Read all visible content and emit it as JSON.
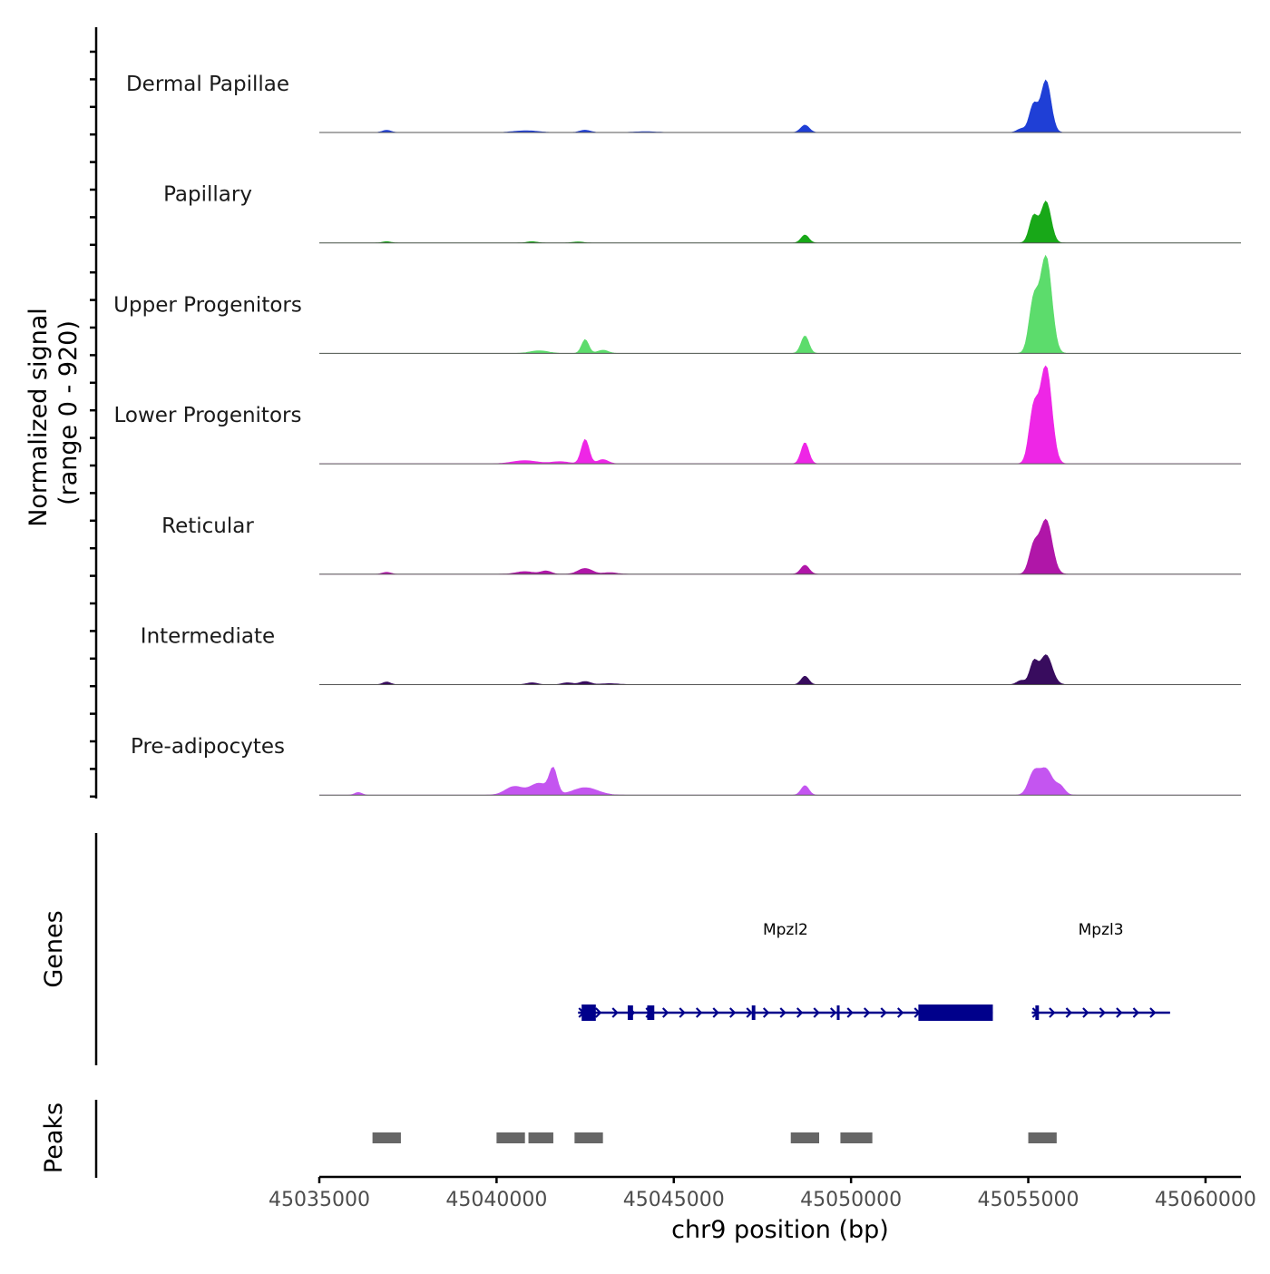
{
  "chart_data": {
    "type": "area",
    "title": "",
    "xlabel": "chr9 position (bp)",
    "ylabel_line1": "Normalized signal",
    "ylabel_line2": "(range 0 - 920)",
    "y_range": [
      0,
      920
    ],
    "xlim": [
      45035000,
      45061000
    ],
    "x_ticks": [
      45035000,
      45040000,
      45045000,
      45050000,
      45055000,
      45060000
    ],
    "x_tick_labels": [
      "45035000",
      "45040000",
      "45045000",
      "45050000",
      "45055000",
      "45060000"
    ],
    "tracks": [
      {
        "name": "Dermal Papillae",
        "color": "#1f3fd6",
        "peaks": [
          {
            "center": 45036900,
            "width": 120,
            "height": 22
          },
          {
            "center": 45040600,
            "width": 250,
            "height": 10
          },
          {
            "center": 45041000,
            "width": 250,
            "height": 12
          },
          {
            "center": 45042500,
            "width": 150,
            "height": 22
          },
          {
            "center": 45044200,
            "width": 300,
            "height": 8
          },
          {
            "center": 45048700,
            "width": 120,
            "height": 70
          },
          {
            "center": 45054800,
            "width": 120,
            "height": 35
          },
          {
            "center": 45055150,
            "width": 120,
            "height": 260
          },
          {
            "center": 45055500,
            "width": 140,
            "height": 490
          }
        ]
      },
      {
        "name": "Papillary",
        "color": "#18a818",
        "peaks": [
          {
            "center": 45036900,
            "width": 120,
            "height": 12
          },
          {
            "center": 45041000,
            "width": 150,
            "height": 12
          },
          {
            "center": 45042300,
            "width": 150,
            "height": 10
          },
          {
            "center": 45048700,
            "width": 110,
            "height": 75
          },
          {
            "center": 45055150,
            "width": 120,
            "height": 250
          },
          {
            "center": 45055500,
            "width": 140,
            "height": 390
          }
        ]
      },
      {
        "name": "Upper Progenitors",
        "color": "#5cdc6c",
        "peaks": [
          {
            "center": 45041200,
            "width": 250,
            "height": 25
          },
          {
            "center": 45042500,
            "width": 100,
            "height": 130
          },
          {
            "center": 45043000,
            "width": 150,
            "height": 30
          },
          {
            "center": 45048700,
            "width": 110,
            "height": 165
          },
          {
            "center": 45055150,
            "width": 130,
            "height": 480
          },
          {
            "center": 45055500,
            "width": 160,
            "height": 910
          }
        ]
      },
      {
        "name": "Lower Progenitors",
        "color": "#ee26e6",
        "peaks": [
          {
            "center": 45040800,
            "width": 350,
            "height": 30
          },
          {
            "center": 45041800,
            "width": 250,
            "height": 20
          },
          {
            "center": 45042500,
            "width": 110,
            "height": 230
          },
          {
            "center": 45043000,
            "width": 150,
            "height": 40
          },
          {
            "center": 45048700,
            "width": 110,
            "height": 200
          },
          {
            "center": 45055150,
            "width": 130,
            "height": 500
          },
          {
            "center": 45055500,
            "width": 160,
            "height": 920
          }
        ]
      },
      {
        "name": "Reticular",
        "color": "#b016a8",
        "peaks": [
          {
            "center": 45036900,
            "width": 120,
            "height": 18
          },
          {
            "center": 45040800,
            "width": 250,
            "height": 25
          },
          {
            "center": 45041400,
            "width": 150,
            "height": 30
          },
          {
            "center": 45042500,
            "width": 200,
            "height": 55
          },
          {
            "center": 45043200,
            "width": 200,
            "height": 15
          },
          {
            "center": 45048700,
            "width": 120,
            "height": 85
          },
          {
            "center": 45055150,
            "width": 130,
            "height": 250
          },
          {
            "center": 45055500,
            "width": 170,
            "height": 510
          }
        ]
      },
      {
        "name": "Intermediate",
        "color": "#380c5e",
        "peaks": [
          {
            "center": 45036900,
            "width": 110,
            "height": 25
          },
          {
            "center": 45041000,
            "width": 150,
            "height": 18
          },
          {
            "center": 45042000,
            "width": 150,
            "height": 18
          },
          {
            "center": 45042500,
            "width": 150,
            "height": 30
          },
          {
            "center": 45043200,
            "width": 250,
            "height": 10
          },
          {
            "center": 45048700,
            "width": 110,
            "height": 80
          },
          {
            "center": 45054800,
            "width": 120,
            "height": 40
          },
          {
            "center": 45055150,
            "width": 110,
            "height": 200
          },
          {
            "center": 45055500,
            "width": 170,
            "height": 280
          }
        ]
      },
      {
        "name": "Pre-adipocytes",
        "color": "#c455f0",
        "peaks": [
          {
            "center": 45036100,
            "width": 100,
            "height": 25
          },
          {
            "center": 45040500,
            "width": 250,
            "height": 80
          },
          {
            "center": 45041200,
            "width": 250,
            "height": 110
          },
          {
            "center": 45041600,
            "width": 110,
            "height": 230
          },
          {
            "center": 45042500,
            "width": 350,
            "height": 70
          },
          {
            "center": 45048700,
            "width": 110,
            "height": 90
          },
          {
            "center": 45055150,
            "width": 150,
            "height": 200
          },
          {
            "center": 45055500,
            "width": 180,
            "height": 240
          },
          {
            "center": 45055900,
            "width": 130,
            "height": 80
          }
        ]
      }
    ],
    "genes_label": "Genes",
    "gene_color": "#00008b",
    "genes": [
      {
        "name": "Mpzl2",
        "strand": "+",
        "start": 45042300,
        "end": 45054000,
        "exons": [
          {
            "start": 45042400,
            "end": 45042800,
            "thick": true
          },
          {
            "start": 45043700,
            "end": 45043850,
            "thick": false
          },
          {
            "start": 45044250,
            "end": 45044450,
            "thick": false
          },
          {
            "start": 45047200,
            "end": 45047300,
            "thick": false
          },
          {
            "start": 45049600,
            "end": 45049650,
            "thick": false
          },
          {
            "start": 45051900,
            "end": 45054000,
            "thick": true
          }
        ]
      },
      {
        "name": "Mpzl3",
        "strand": "+",
        "start": 45055100,
        "end": 45059000,
        "exons": [
          {
            "start": 45055200,
            "end": 45055300,
            "thick": false
          }
        ]
      }
    ],
    "peaks_label": "Peaks",
    "peaks_color": "#666666",
    "peak_regions": [
      [
        45036500,
        45037300
      ],
      [
        45040000,
        45040800
      ],
      [
        45040900,
        45041600
      ],
      [
        45042200,
        45043000
      ],
      [
        45048300,
        45049100
      ],
      [
        45049700,
        45050600
      ],
      [
        45055000,
        45055800
      ]
    ]
  }
}
